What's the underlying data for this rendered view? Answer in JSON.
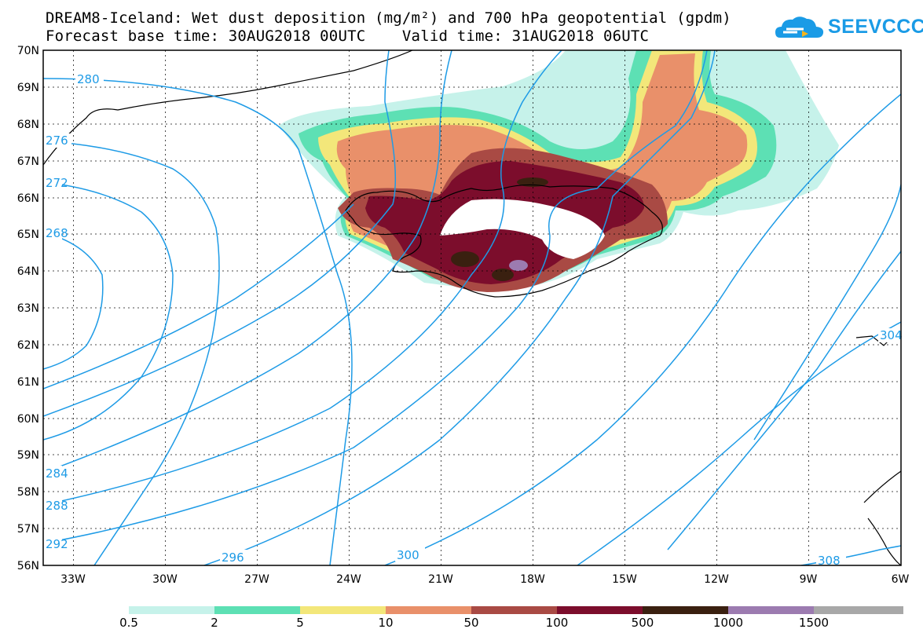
{
  "header": {
    "title_line1": "DREAM8-Iceland: Wet dust deposition (mg/m²) and 700 hPa geopotential (gpdm)",
    "title_line2": "Forecast base time: 30AUG2018 00UTC    Valid time: 31AUG2018 06UTC",
    "logo_text": "SEEVCCC"
  },
  "map": {
    "lat_labels": [
      "70N",
      "69N",
      "68N",
      "67N",
      "66N",
      "65N",
      "64N",
      "63N",
      "62N",
      "61N",
      "60N",
      "59N",
      "58N",
      "57N",
      "56N"
    ],
    "lon_labels": [
      "33W",
      "30W",
      "27W",
      "24W",
      "21W",
      "18W",
      "15W",
      "12W",
      "9W",
      "6W"
    ],
    "contour_labels": [
      "280",
      "276",
      "272",
      "268",
      "284",
      "288",
      "292",
      "296",
      "300",
      "304",
      "308"
    ],
    "colors": {
      "contour": "#1e9be6",
      "coast": "#000000"
    }
  },
  "colorbar": {
    "labels": [
      "0.5",
      "2",
      "5",
      "10",
      "50",
      "100",
      "500",
      "1000",
      "1500"
    ],
    "colors": [
      "#c6f2ea",
      "#5de0b4",
      "#f3e77a",
      "#e9906a",
      "#a94a44",
      "#7c0d2c",
      "#3a2010",
      "#9c7bb0",
      "#a8a8a8"
    ]
  }
}
